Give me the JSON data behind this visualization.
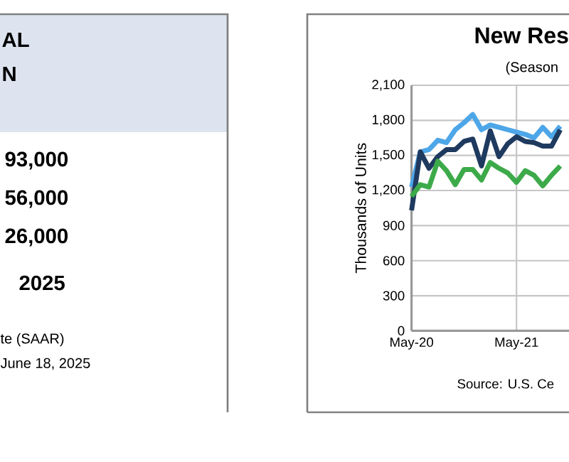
{
  "chart_data": [
    {
      "type": "other",
      "annotations": [
        "AL",
        "N",
        "93,000",
        "56,000",
        "26,000",
        "2025",
        "te (SAAR)",
        "June 18, 2025"
      ]
    },
    {
      "type": "line",
      "title": "New Res",
      "subtitle": "(Season",
      "ylabel": "Thousands of Units",
      "annotations": [
        "Source:  U.S. Ce"
      ],
      "x": [
        "2020-05",
        "2020-06",
        "2020-07",
        "2020-08",
        "2020-09",
        "2020-10",
        "2020-11",
        "2020-12",
        "2021-01",
        "2021-02",
        "2021-03",
        "2021-04",
        "2021-05",
        "2021-06",
        "2021-07",
        "2021-08",
        "2021-09",
        "2021-10"
      ],
      "series": [
        {
          "color": "#4da6e8",
          "values": [
            1230,
            1530,
            1550,
            1630,
            1610,
            1720,
            1780,
            1850,
            1720,
            1760,
            1740,
            1720,
            1700,
            1680,
            1650,
            1740,
            1660,
            1750
          ]
        },
        {
          "color": "#1f3a5f",
          "values": [
            1030,
            1530,
            1390,
            1490,
            1550,
            1550,
            1620,
            1640,
            1410,
            1710,
            1490,
            1600,
            1660,
            1620,
            1610,
            1580,
            1580,
            1720
          ]
        },
        {
          "color": "#3daa4a",
          "values": [
            1150,
            1250,
            1230,
            1450,
            1370,
            1250,
            1380,
            1380,
            1290,
            1440,
            1390,
            1350,
            1270,
            1370,
            1330,
            1240,
            1330,
            1410
          ]
        }
      ],
      "xlim": [
        "2020-05",
        "2021-11"
      ],
      "ylim": [
        0,
        2100
      ],
      "xticks": [
        {
          "value": "2020-05",
          "label": "May-20"
        },
        {
          "value": "2021-05",
          "label": "May-21"
        }
      ],
      "yticks": [
        {
          "value": 0,
          "label": "0"
        },
        {
          "value": 300,
          "label": "300"
        },
        {
          "value": 600,
          "label": "600"
        },
        {
          "value": 900,
          "label": "900"
        },
        {
          "value": 1200,
          "label": "1,200"
        },
        {
          "value": 1500,
          "label": "1,500"
        },
        {
          "value": 1800,
          "label": "1,800"
        },
        {
          "value": 2100,
          "label": "2,100"
        }
      ],
      "grid": true,
      "marker": "none",
      "line_style": "solid"
    }
  ]
}
